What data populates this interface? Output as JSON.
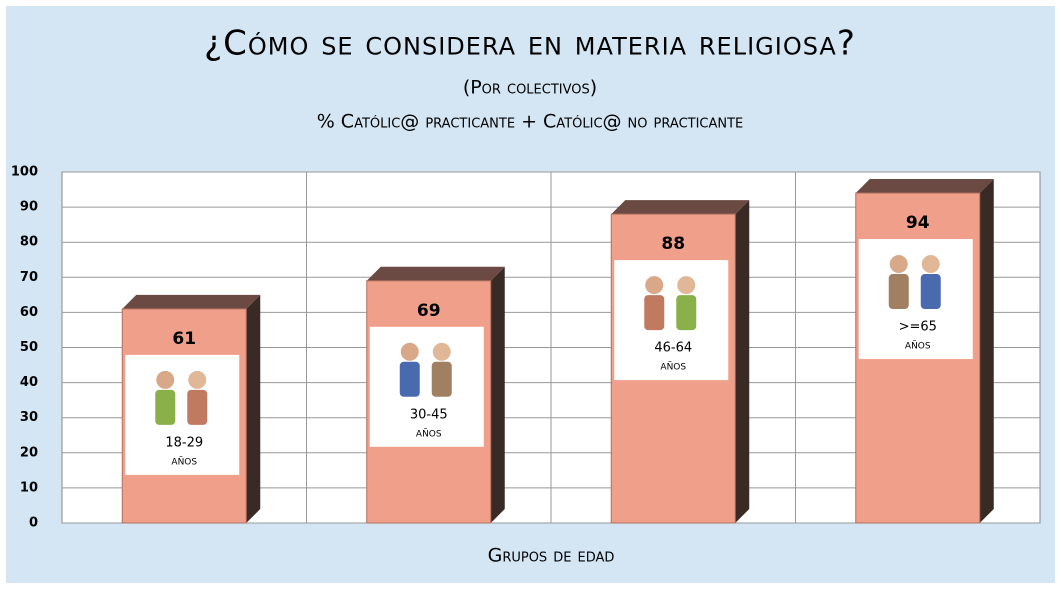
{
  "chart_data": {
    "type": "bar",
    "title": "¿Cómo se considera en materia religiosa?",
    "subtitle": "(Por colectivos)",
    "subtitle2": "% Católic@ practicante + Católic@ no practicante",
    "x_label": "Grupos de edad",
    "categories": [
      "18-29",
      "30-45",
      "46-64",
      ">=65"
    ],
    "category_units": [
      "años",
      "años",
      "años",
      "años"
    ],
    "values": [
      61,
      69,
      88,
      94
    ],
    "color": "#f0a08a",
    "ylim": [
      0,
      100
    ],
    "yticks": [
      0,
      10,
      20,
      30,
      40,
      50,
      60,
      70,
      80,
      90,
      100
    ],
    "grid": true
  }
}
